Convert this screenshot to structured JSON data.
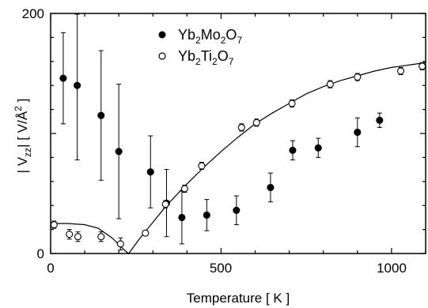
{
  "chart_data": {
    "type": "scatter",
    "xlabel": "Temperature [ K ]",
    "ylabel": "| V",
    "ylabel_sub": "zz",
    "ylabel_unit": "|   [ V/Å",
    "ylabel_unit_sup": "2",
    "ylabel_close": " ]",
    "xlim": [
      0,
      1100
    ],
    "ylim": [
      0,
      200
    ],
    "xticks": [
      0,
      500,
      1000
    ],
    "yticks": [
      0,
      200
    ],
    "legend_position": "top-center",
    "series": [
      {
        "name": "Yb2Mo2O7",
        "name_parts": [
          "Yb",
          "2",
          "Mo",
          "2",
          "O",
          "7"
        ],
        "marker": "filled-circle",
        "color": "#000000",
        "points": [
          {
            "x": 37,
            "y": 146,
            "err": 38
          },
          {
            "x": 78,
            "y": 140,
            "err": 62
          },
          {
            "x": 148,
            "y": 115,
            "err": 54
          },
          {
            "x": 200,
            "y": 85,
            "err": 56
          },
          {
            "x": 293,
            "y": 68,
            "err": 30
          },
          {
            "x": 340,
            "y": 42,
            "err": 28
          },
          {
            "x": 385,
            "y": 30,
            "err": 22
          },
          {
            "x": 458,
            "y": 32,
            "err": 13
          },
          {
            "x": 545,
            "y": 36,
            "err": 12
          },
          {
            "x": 645,
            "y": 55,
            "err": 12
          },
          {
            "x": 710,
            "y": 86,
            "err": 8
          },
          {
            "x": 785,
            "y": 88,
            "err": 8
          },
          {
            "x": 900,
            "y": 101,
            "err": 12
          },
          {
            "x": 965,
            "y": 111,
            "err": 6
          }
        ]
      },
      {
        "name": "Yb2Ti2O7",
        "name_parts": [
          "Yb",
          "2",
          "Ti",
          "2",
          "O",
          "7"
        ],
        "marker": "open-circle",
        "color": "#000000",
        "points": [
          {
            "x": 10,
            "y": 24,
            "err": 3
          },
          {
            "x": 55,
            "y": 16,
            "err": 4
          },
          {
            "x": 80,
            "y": 14,
            "err": 4
          },
          {
            "x": 148,
            "y": 14,
            "err": 4
          },
          {
            "x": 205,
            "y": 8,
            "err": 5
          },
          {
            "x": 278,
            "y": 17,
            "err": 2
          },
          {
            "x": 337,
            "y": 41,
            "err": 3
          },
          {
            "x": 393,
            "y": 54,
            "err": 3
          },
          {
            "x": 443,
            "y": 73,
            "err": 3
          },
          {
            "x": 560,
            "y": 105,
            "err": 3
          },
          {
            "x": 604,
            "y": 109,
            "err": 3
          },
          {
            "x": 708,
            "y": 125,
            "err": 3
          },
          {
            "x": 820,
            "y": 141,
            "err": 3
          },
          {
            "x": 900,
            "y": 147,
            "err": 3
          },
          {
            "x": 1027,
            "y": 152,
            "err": 3
          },
          {
            "x": 1090,
            "y": 156,
            "err": 3
          }
        ]
      }
    ],
    "fit_curve": [
      [
        0,
        25
      ],
      [
        50,
        25
      ],
      [
        100,
        24
      ],
      [
        140,
        21
      ],
      [
        180,
        13
      ],
      [
        220,
        2
      ],
      [
        229,
        0
      ],
      [
        260,
        12
      ],
      [
        300,
        26
      ],
      [
        340,
        40
      ],
      [
        400,
        58
      ],
      [
        450,
        72
      ],
      [
        500,
        85
      ],
      [
        550,
        97
      ],
      [
        600,
        108
      ],
      [
        650,
        117
      ],
      [
        700,
        125
      ],
      [
        750,
        133
      ],
      [
        800,
        139
      ],
      [
        850,
        144
      ],
      [
        900,
        148
      ],
      [
        950,
        152
      ],
      [
        1000,
        155
      ],
      [
        1050,
        157
      ],
      [
        1100,
        159
      ]
    ]
  }
}
